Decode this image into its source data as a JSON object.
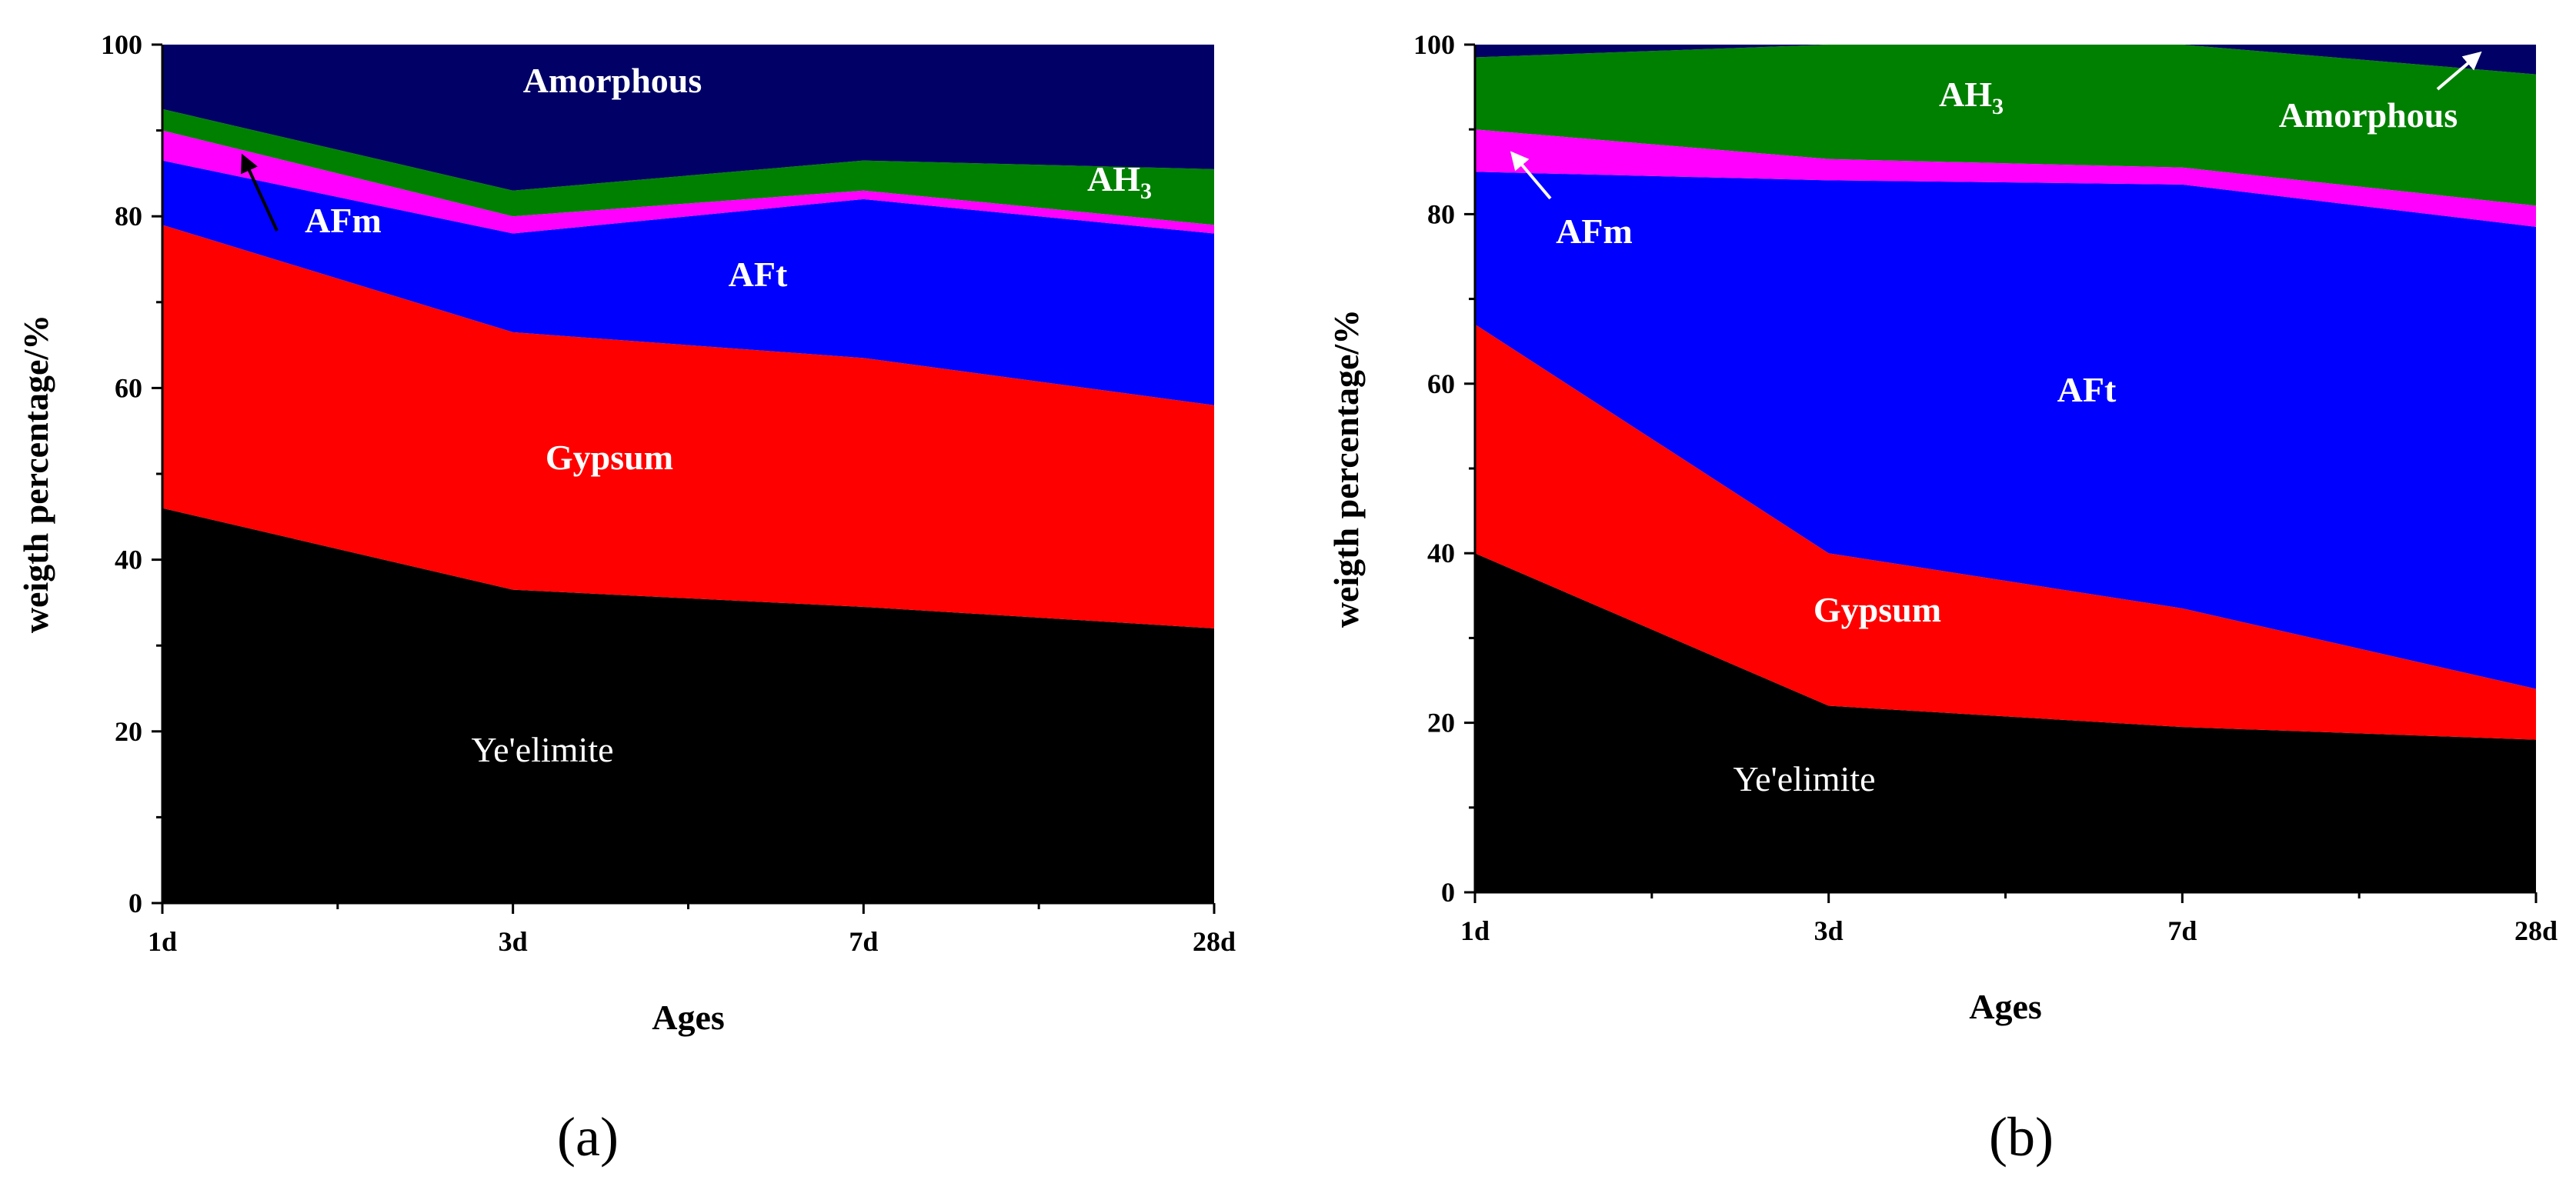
{
  "chart_data": [
    {
      "type": "area",
      "stacked": true,
      "panel_label": "(a)",
      "xlabel": "Ages",
      "ylabel": "weigth percentage/%",
      "categories": [
        "1d",
        "3d",
        "7d",
        "28d"
      ],
      "ylim": [
        0,
        100
      ],
      "yticks": [
        "0",
        "20",
        "40",
        "60",
        "80",
        "100"
      ],
      "series": [
        {
          "name": "Ye'elimite",
          "color": "#000000",
          "values": [
            46,
            36.5,
            34.5,
            32
          ]
        },
        {
          "name": "Gypsum",
          "color": "#ff0000",
          "values": [
            33,
            30,
            29,
            26
          ]
        },
        {
          "name": "AFt",
          "color": "#0000ff",
          "values": [
            7.5,
            11.5,
            18.5,
            20
          ]
        },
        {
          "name": "AFm",
          "color": "#ff00ff",
          "values": [
            3.5,
            2,
            1,
            1
          ]
        },
        {
          "name": "AH3",
          "color": "#008000",
          "values": [
            2.5,
            3,
            3.5,
            6.5
          ]
        },
        {
          "name": "Amorphous",
          "color": "#000066",
          "values": [
            7.5,
            17,
            13.5,
            14.5
          ]
        }
      ],
      "labels": {
        "yeelimite": "Ye'elimite",
        "gypsum": "Gypsum",
        "aft": "AFt",
        "afm": "AFm",
        "ah3_main": "AH",
        "ah3_sub": "3",
        "amorphous": "Amorphous"
      }
    },
    {
      "type": "area",
      "stacked": true,
      "panel_label": "(b)",
      "xlabel": "Ages",
      "ylabel": "weigth percentage/%",
      "categories": [
        "1d",
        "3d",
        "7d",
        "28d"
      ],
      "ylim": [
        0,
        100
      ],
      "yticks": [
        "0",
        "20",
        "40",
        "60",
        "80",
        "100"
      ],
      "series": [
        {
          "name": "Ye'elimite",
          "color": "#000000",
          "values": [
            40,
            22,
            19.5,
            18
          ]
        },
        {
          "name": "Gypsum",
          "color": "#ff0000",
          "values": [
            27,
            18,
            14,
            6
          ]
        },
        {
          "name": "AFt",
          "color": "#0000ff",
          "values": [
            18,
            44,
            50,
            54.5
          ]
        },
        {
          "name": "AFm",
          "color": "#ff00ff",
          "values": [
            5,
            2.5,
            2,
            2.5
          ]
        },
        {
          "name": "AH3",
          "color": "#008000",
          "values": [
            8.5,
            13.5,
            14.5,
            15.5
          ]
        },
        {
          "name": "Amorphous",
          "color": "#000066",
          "values": [
            1.5,
            0,
            0,
            3.5
          ]
        }
      ],
      "labels": {
        "yeelimite": "Ye'elimite",
        "gypsum": "Gypsum",
        "aft": "AFt",
        "afm": "AFm",
        "ah3_main": "AH",
        "ah3_sub": "3",
        "amorphous": "Amorphous"
      }
    }
  ]
}
